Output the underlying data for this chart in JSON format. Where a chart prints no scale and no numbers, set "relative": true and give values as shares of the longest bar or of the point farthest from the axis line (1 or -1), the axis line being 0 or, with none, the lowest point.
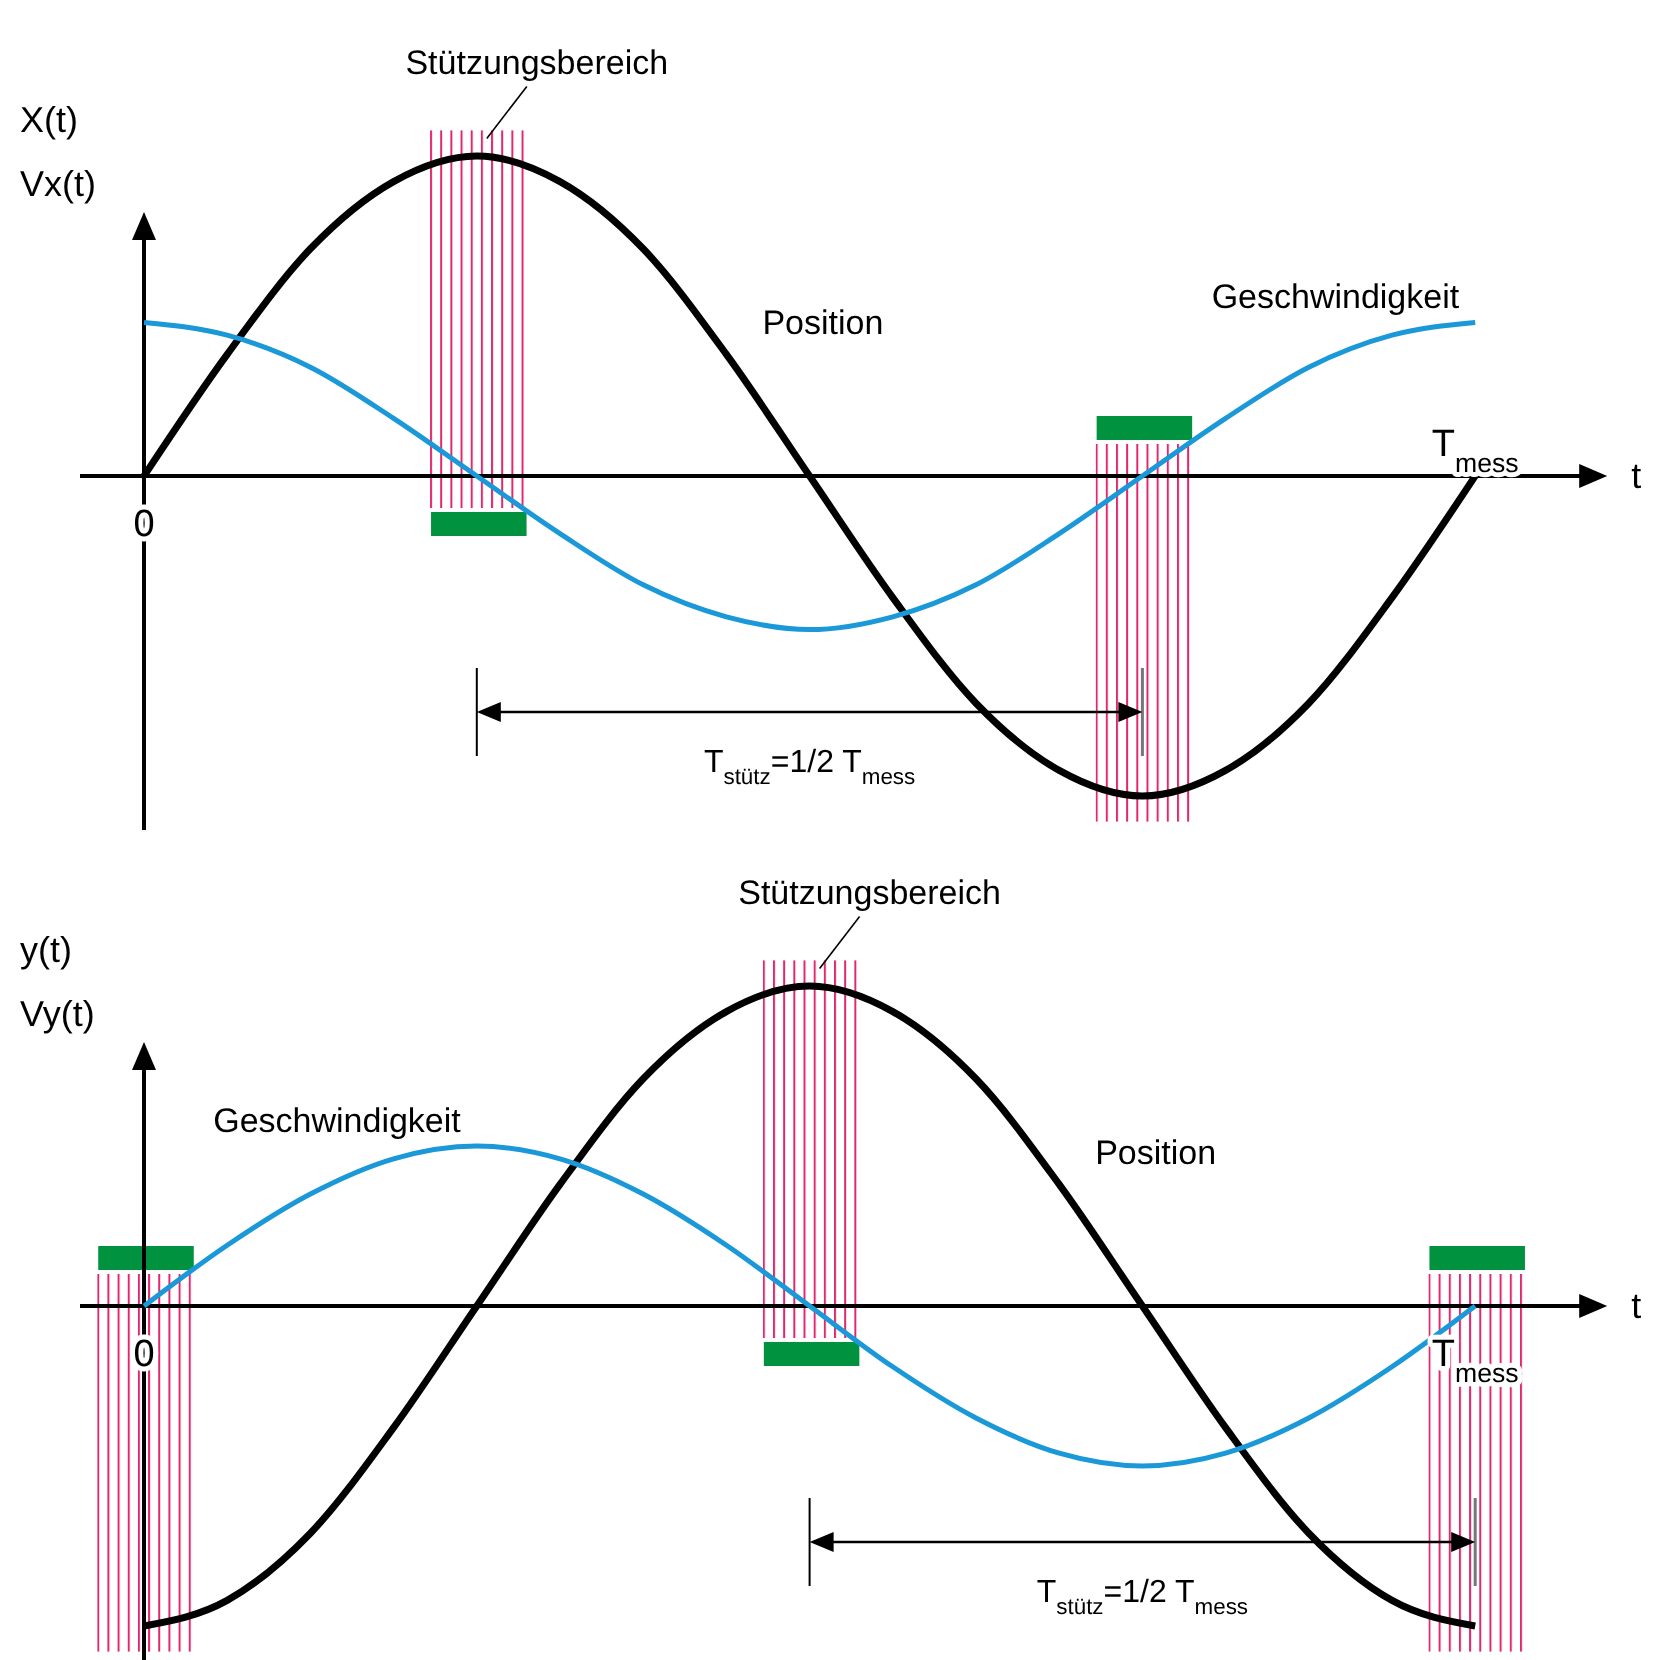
{
  "chart_data": [
    {
      "type": "line",
      "relative": true,
      "xlabel": "t",
      "ylabel": "X(t)\nVx(t)",
      "categories": [
        "0",
        null,
        null,
        null,
        null,
        null,
        null,
        null,
        null,
        null,
        null,
        null,
        null,
        null,
        null,
        null,
        "T$_{mess}$"
      ],
      "series": [
        {
          "name": "Position",
          "color": "#000000",
          "values": [
            0,
            0.38,
            0.71,
            0.92,
            1,
            0.92,
            0.71,
            0.38,
            0,
            -0.38,
            -0.71,
            -0.92,
            -1,
            -0.92,
            -0.71,
            -0.38,
            0
          ]
        },
        {
          "name": "Geschwindigkeit",
          "color": "#1a98d8",
          "values": [
            0.48,
            0.44,
            0.34,
            0.18,
            0,
            -0.18,
            -0.34,
            -0.44,
            -0.48,
            -0.44,
            -0.34,
            -0.18,
            0,
            0.18,
            0.34,
            0.44,
            0.48
          ]
        }
      ],
      "annotations": [
        "Stützungsbereich",
        "T$_{stütz}$=1/2 T$_{mess}$"
      ]
    },
    {
      "type": "line",
      "relative": true,
      "xlabel": "t",
      "ylabel": "y(t)\nVy(t)",
      "categories": [
        "0",
        null,
        null,
        null,
        null,
        null,
        null,
        null,
        null,
        null,
        null,
        null,
        null,
        null,
        null,
        null,
        "T$_{mess}$"
      ],
      "series": [
        {
          "name": "Position",
          "color": "#000000",
          "values": [
            -1,
            -0.92,
            -0.71,
            -0.38,
            0,
            0.38,
            0.71,
            0.92,
            1,
            0.92,
            0.71,
            0.38,
            0,
            -0.38,
            -0.71,
            -0.92,
            -1
          ]
        },
        {
          "name": "Geschwindigkeit",
          "color": "#1a98d8",
          "values": [
            0,
            0.19,
            0.35,
            0.46,
            0.5,
            0.46,
            0.35,
            0.19,
            0,
            -0.19,
            -0.35,
            -0.46,
            -0.5,
            -0.46,
            -0.35,
            -0.19,
            0
          ]
        }
      ],
      "annotations": [
        "Stützungsbereich",
        "T$_{stütz}$=1/2 T$_{mess}$"
      ]
    }
  ]
}
